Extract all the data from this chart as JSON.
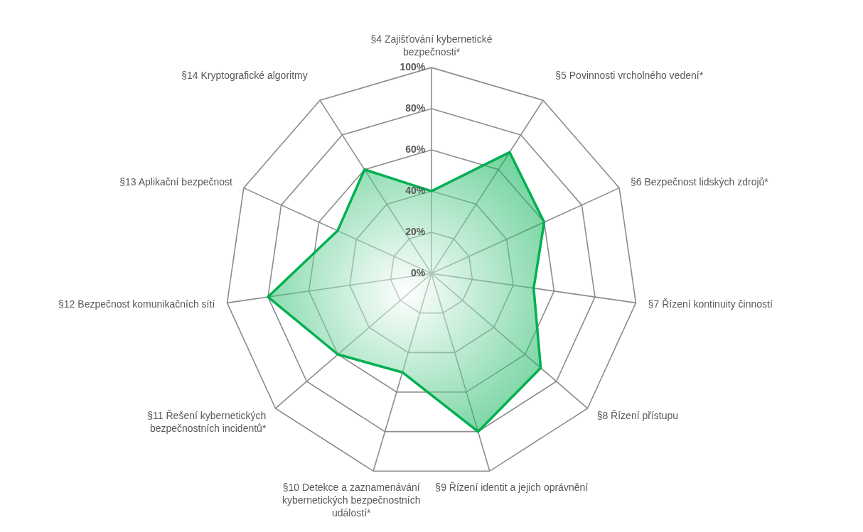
{
  "chart_data": {
    "type": "radar",
    "categories": [
      "§4 Zajišťování kybernetické bezpečnosti*",
      "§5 Povinnosti vrcholného vedení*",
      "§6 Bezpečnost lidských zdrojů*",
      "§7 Řízení kontinuity činností",
      "§8 Řízení přístupu",
      "§9 Řízení identit a jejich oprávnění",
      "§10 Detekce a zaznamenávání kybernetických bezpečnostních událostí*",
      "§11 Řešení kybernetických bezpečnostních incidentů*",
      "§12 Bezpečnost komunikačních sítí",
      "§13 Aplikační bezpečnost",
      "§14 Kryptografické algoritmy"
    ],
    "series": [
      {
        "color": "#00b050",
        "values": [
          40,
          70,
          60,
          50,
          70,
          80,
          50,
          60,
          80,
          50,
          60
        ]
      }
    ],
    "ylim": [
      0,
      100
    ],
    "yticks": [
      {
        "value": 0,
        "label": "0%"
      },
      {
        "value": 20,
        "label": "20%"
      },
      {
        "value": 40,
        "label": "40%"
      },
      {
        "value": 60,
        "label": "60%"
      },
      {
        "value": 80,
        "label": "80%"
      },
      {
        "value": 100,
        "label": "100%"
      }
    ],
    "grid": true,
    "marker": "none"
  }
}
